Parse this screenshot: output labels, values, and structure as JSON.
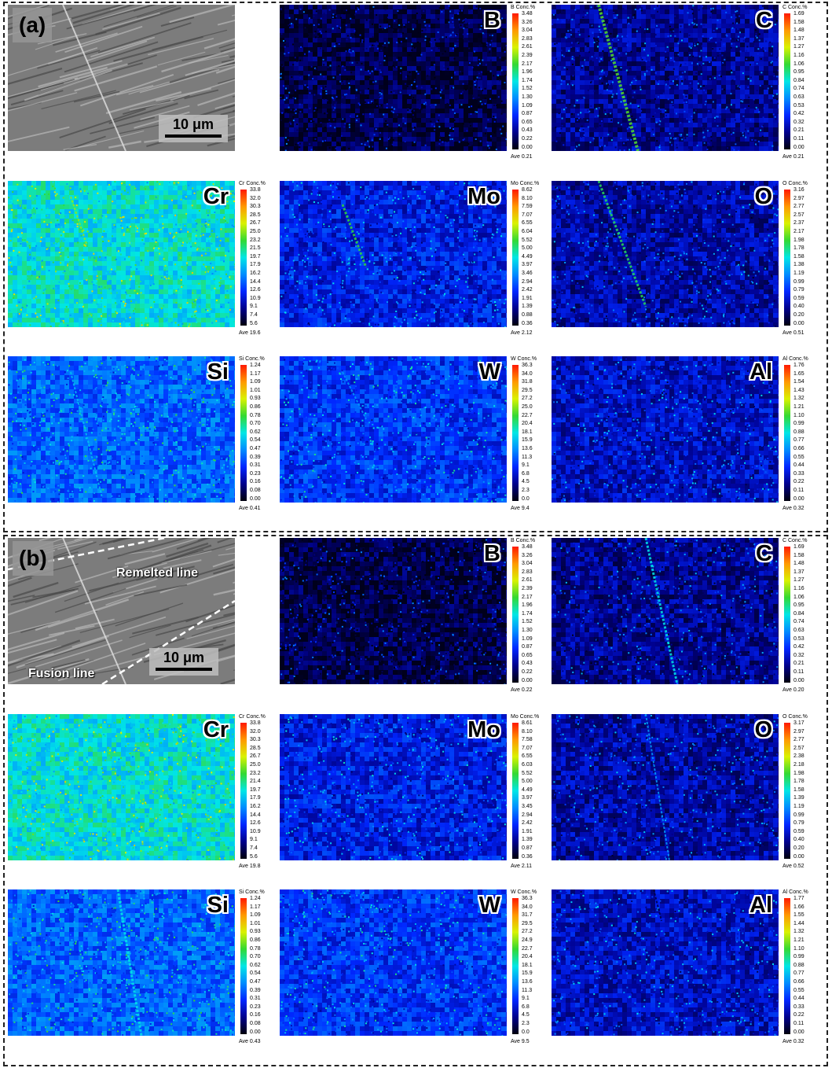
{
  "panels": [
    {
      "tag": "(a)",
      "scale_label": "10 μm",
      "annotations": [],
      "maps": [
        {
          "element": "B",
          "title": "B Conc.%",
          "ticks": [
            "3.48",
            "3.26",
            "3.04",
            "2.83",
            "2.61",
            "2.39",
            "2.17",
            "1.96",
            "1.74",
            "1.52",
            "1.30",
            "1.09",
            "0.87",
            "0.65",
            "0.43",
            "0.22",
            "0.00"
          ],
          "ave": "Ave 0.21",
          "level": 0.06
        },
        {
          "element": "C",
          "title": "C Conc.%",
          "ticks": [
            "1.69",
            "1.58",
            "1.48",
            "1.37",
            "1.27",
            "1.16",
            "1.06",
            "0.95",
            "0.84",
            "0.74",
            "0.63",
            "0.53",
            "0.42",
            "0.32",
            "0.21",
            "0.11",
            "0.00"
          ],
          "ave": "Ave 0.21",
          "level": 0.13
        },
        {
          "element": "Cr",
          "title": "Cr Conc.%",
          "ticks": [
            "33.8",
            "32.0",
            "30.3",
            "28.5",
            "26.7",
            "25.0",
            "23.2",
            "21.5",
            "19.7",
            "17.9",
            "16.2",
            "14.4",
            "12.6",
            "10.9",
            "9.1",
            "7.4",
            "5.6"
          ],
          "ave": "Ave 19.6",
          "level": 0.5
        },
        {
          "element": "Mo",
          "title": "Mo Conc.%",
          "ticks": [
            "8.62",
            "8.10",
            "7.59",
            "7.07",
            "6.55",
            "6.04",
            "5.52",
            "5.00",
            "4.49",
            "3.97",
            "3.46",
            "2.94",
            "2.42",
            "1.91",
            "1.39",
            "0.88",
            "0.36"
          ],
          "ave": "Ave 2.12",
          "level": 0.22
        },
        {
          "element": "O",
          "title": "O Conc.%",
          "ticks": [
            "3.16",
            "2.97",
            "2.77",
            "2.57",
            "2.37",
            "2.17",
            "1.98",
            "1.78",
            "1.58",
            "1.38",
            "1.19",
            "0.99",
            "0.79",
            "0.59",
            "0.40",
            "0.20",
            "0.00"
          ],
          "ave": "Ave 0.51",
          "level": 0.15
        },
        {
          "element": "Si",
          "title": "Si Conc.%",
          "ticks": [
            "1.24",
            "1.17",
            "1.09",
            "1.01",
            "0.93",
            "0.86",
            "0.78",
            "0.70",
            "0.62",
            "0.54",
            "0.47",
            "0.39",
            "0.31",
            "0.23",
            "0.16",
            "0.08",
            "0.00"
          ],
          "ave": "Ave 0.41",
          "level": 0.32
        },
        {
          "element": "W",
          "title": "W Conc.%",
          "ticks": [
            "36.3",
            "34.0",
            "31.8",
            "29.5",
            "27.2",
            "25.0",
            "22.7",
            "20.4",
            "18.1",
            "15.9",
            "13.6",
            "11.3",
            "9.1",
            "6.8",
            "4.5",
            "2.3",
            "0.0"
          ],
          "ave": "Ave 9.4",
          "level": 0.26
        },
        {
          "element": "Al",
          "title": "Al Conc.%",
          "ticks": [
            "1.76",
            "1.65",
            "1.54",
            "1.43",
            "1.32",
            "1.21",
            "1.10",
            "0.99",
            "0.88",
            "0.77",
            "0.66",
            "0.55",
            "0.44",
            "0.33",
            "0.22",
            "0.11",
            "0.00"
          ],
          "ave": "Ave 0.32",
          "level": 0.18
        }
      ]
    },
    {
      "tag": "(b)",
      "scale_label": "10 μm",
      "annotations": [
        "Remelted line",
        "Fusion line"
      ],
      "maps": [
        {
          "element": "B",
          "title": "B Conc.%",
          "ticks": [
            "3.48",
            "3.26",
            "3.04",
            "2.83",
            "2.61",
            "2.39",
            "2.17",
            "1.96",
            "1.74",
            "1.52",
            "1.30",
            "1.09",
            "0.87",
            "0.65",
            "0.43",
            "0.22",
            "0.00"
          ],
          "ave": "Ave 0.22",
          "level": 0.06
        },
        {
          "element": "C",
          "title": "C Conc.%",
          "ticks": [
            "1.69",
            "1.58",
            "1.48",
            "1.37",
            "1.27",
            "1.16",
            "1.06",
            "0.95",
            "0.84",
            "0.74",
            "0.63",
            "0.53",
            "0.42",
            "0.32",
            "0.21",
            "0.11",
            "0.00"
          ],
          "ave": "Ave 0.20",
          "level": 0.13
        },
        {
          "element": "Cr",
          "title": "Cr Conc.%",
          "ticks": [
            "33.8",
            "32.0",
            "30.3",
            "28.5",
            "26.7",
            "25.0",
            "23.2",
            "21.4",
            "19.7",
            "17.9",
            "16.2",
            "14.4",
            "12.6",
            "10.9",
            "9.1",
            "7.4",
            "5.6"
          ],
          "ave": "Ave 19.8",
          "level": 0.5
        },
        {
          "element": "Mo",
          "title": "Mo Conc.%",
          "ticks": [
            "8.61",
            "8.10",
            "7.58",
            "7.07",
            "6.55",
            "6.03",
            "5.52",
            "5.00",
            "4.49",
            "3.97",
            "3.45",
            "2.94",
            "2.42",
            "1.91",
            "1.39",
            "0.87",
            "0.36"
          ],
          "ave": "Ave 2.11",
          "level": 0.22
        },
        {
          "element": "O",
          "title": "O Conc.%",
          "ticks": [
            "3.17",
            "2.97",
            "2.77",
            "2.57",
            "2.38",
            "2.18",
            "1.98",
            "1.78",
            "1.58",
            "1.39",
            "1.19",
            "0.99",
            "0.79",
            "0.59",
            "0.40",
            "0.20",
            "0.00"
          ],
          "ave": "Ave 0.52",
          "level": 0.15
        },
        {
          "element": "Si",
          "title": "Si Conc.%",
          "ticks": [
            "1.24",
            "1.17",
            "1.09",
            "1.01",
            "0.93",
            "0.86",
            "0.78",
            "0.70",
            "0.62",
            "0.54",
            "0.47",
            "0.39",
            "0.31",
            "0.23",
            "0.16",
            "0.08",
            "0.00"
          ],
          "ave": "Ave 0.43",
          "level": 0.32
        },
        {
          "element": "W",
          "title": "W Conc.%",
          "ticks": [
            "36.3",
            "34.0",
            "31.7",
            "29.5",
            "27.2",
            "24.9",
            "22.7",
            "20.4",
            "18.1",
            "15.9",
            "13.6",
            "11.3",
            "9.1",
            "6.8",
            "4.5",
            "2.3",
            "0.0"
          ],
          "ave": "Ave 9.5",
          "level": 0.26
        },
        {
          "element": "Al",
          "title": "Al Conc.%",
          "ticks": [
            "1.77",
            "1.66",
            "1.55",
            "1.44",
            "1.32",
            "1.21",
            "1.10",
            "0.99",
            "0.88",
            "0.77",
            "0.66",
            "0.55",
            "0.44",
            "0.33",
            "0.22",
            "0.11",
            "0.00"
          ],
          "ave": "Ave 0.32",
          "level": 0.18
        }
      ]
    }
  ]
}
